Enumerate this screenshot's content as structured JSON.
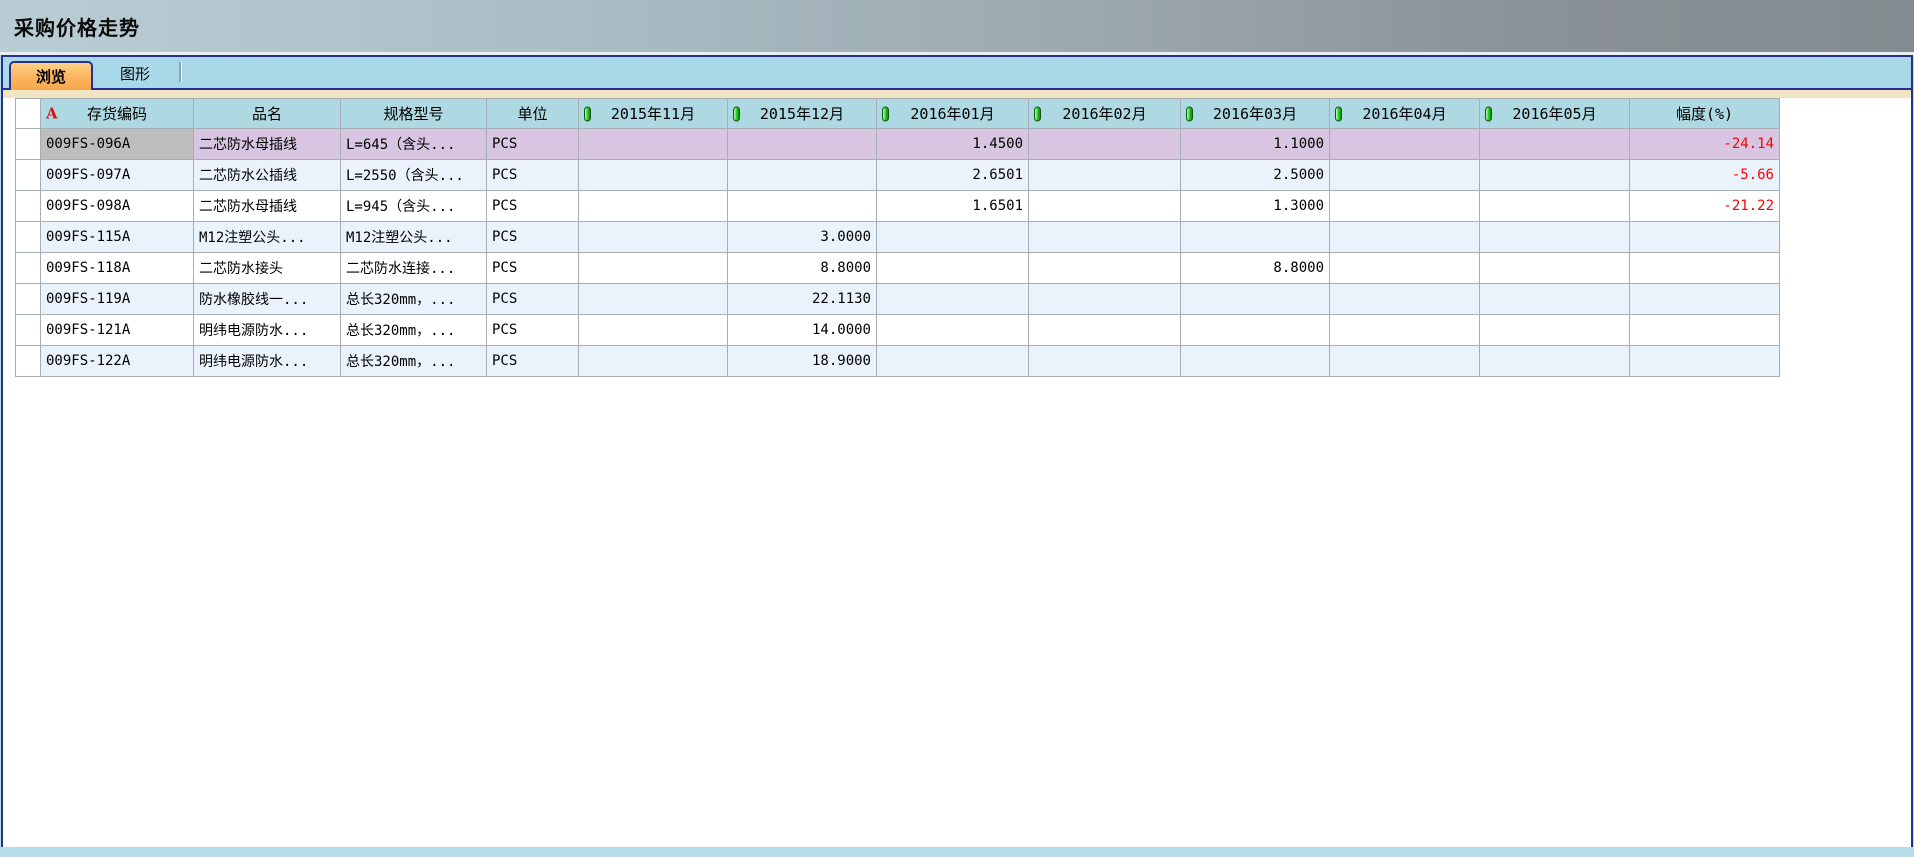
{
  "window": {
    "title": "采购价格走势"
  },
  "tabs": [
    {
      "label": "浏览",
      "active": true
    },
    {
      "label": "图形",
      "active": false
    }
  ],
  "colors": {
    "titlebar_gradient_left": "#b9cdd5",
    "titlebar_gradient_right": "#848b90",
    "frame_border": "#27308e",
    "tabstrip_bg": "#a9d9e8",
    "active_tab_orange": "#fbb863",
    "cream_band": "#f1e5c3",
    "header_bg": "#aed9e3",
    "alt_row_bg": "#eaf3fb",
    "selected_row_bg": "#d7c5e1",
    "selected_cell_bg": "#bfbebe",
    "negative_value": "#ff0000",
    "grid_line": "#a6adb3"
  },
  "table": {
    "columns": [
      {
        "key": "code",
        "label": "存货编码",
        "icon": "text-field-icon",
        "align": "left"
      },
      {
        "key": "name",
        "label": "品名",
        "icon": null,
        "align": "left"
      },
      {
        "key": "spec",
        "label": "规格型号",
        "icon": null,
        "align": "left"
      },
      {
        "key": "unit",
        "label": "单位",
        "icon": null,
        "align": "left"
      },
      {
        "key": "m2015_11",
        "label": "2015年11月",
        "icon": "numeric-field-icon",
        "align": "right"
      },
      {
        "key": "m2015_12",
        "label": "2015年12月",
        "icon": "numeric-field-icon",
        "align": "right"
      },
      {
        "key": "m2016_01",
        "label": "2016年01月",
        "icon": "numeric-field-icon",
        "align": "right"
      },
      {
        "key": "m2016_02",
        "label": "2016年02月",
        "icon": "numeric-field-icon",
        "align": "right"
      },
      {
        "key": "m2016_03",
        "label": "2016年03月",
        "icon": "numeric-field-icon",
        "align": "right"
      },
      {
        "key": "m2016_04",
        "label": "2016年04月",
        "icon": "numeric-field-icon",
        "align": "right"
      },
      {
        "key": "m2016_05",
        "label": "2016年05月",
        "icon": "numeric-field-icon",
        "align": "right"
      },
      {
        "key": "range",
        "label": "幅度(%)",
        "icon": null,
        "align": "right"
      }
    ],
    "rows": [
      {
        "selected": true,
        "cells": {
          "code": "009FS-096A",
          "name": "二芯防水母插线",
          "spec": "L=645（含头...",
          "unit": "PCS",
          "m2015_11": "",
          "m2015_12": "",
          "m2016_01": "1.4500",
          "m2016_02": "",
          "m2016_03": "1.1000",
          "m2016_04": "",
          "m2016_05": "",
          "range": "-24.14"
        }
      },
      {
        "selected": false,
        "cells": {
          "code": "009FS-097A",
          "name": "二芯防水公插线",
          "spec": "L=2550（含头...",
          "unit": "PCS",
          "m2015_11": "",
          "m2015_12": "",
          "m2016_01": "2.6501",
          "m2016_02": "",
          "m2016_03": "2.5000",
          "m2016_04": "",
          "m2016_05": "",
          "range": "-5.66"
        }
      },
      {
        "selected": false,
        "cells": {
          "code": "009FS-098A",
          "name": "二芯防水母插线",
          "spec": "L=945（含头...",
          "unit": "PCS",
          "m2015_11": "",
          "m2015_12": "",
          "m2016_01": "1.6501",
          "m2016_02": "",
          "m2016_03": "1.3000",
          "m2016_04": "",
          "m2016_05": "",
          "range": "-21.22"
        }
      },
      {
        "selected": false,
        "cells": {
          "code": "009FS-115A",
          "name": "M12注塑公头...",
          "spec": "M12注塑公头...",
          "unit": "PCS",
          "m2015_11": "",
          "m2015_12": "3.0000",
          "m2016_01": "",
          "m2016_02": "",
          "m2016_03": "",
          "m2016_04": "",
          "m2016_05": "",
          "range": ""
        }
      },
      {
        "selected": false,
        "cells": {
          "code": "009FS-118A",
          "name": "二芯防水接头",
          "spec": "二芯防水连接...",
          "unit": "PCS",
          "m2015_11": "",
          "m2015_12": "8.8000",
          "m2016_01": "",
          "m2016_02": "",
          "m2016_03": "8.8000",
          "m2016_04": "",
          "m2016_05": "",
          "range": ""
        }
      },
      {
        "selected": false,
        "cells": {
          "code": "009FS-119A",
          "name": "防水橡胶线一...",
          "spec": "总长320mm，...",
          "unit": "PCS",
          "m2015_11": "",
          "m2015_12": "22.1130",
          "m2016_01": "",
          "m2016_02": "",
          "m2016_03": "",
          "m2016_04": "",
          "m2016_05": "",
          "range": ""
        }
      },
      {
        "selected": false,
        "cells": {
          "code": "009FS-121A",
          "name": "明纬电源防水...",
          "spec": "总长320mm，...",
          "unit": "PCS",
          "m2015_11": "",
          "m2015_12": "14.0000",
          "m2016_01": "",
          "m2016_02": "",
          "m2016_03": "",
          "m2016_04": "",
          "m2016_05": "",
          "range": ""
        }
      },
      {
        "selected": false,
        "cells": {
          "code": "009FS-122A",
          "name": "明纬电源防水...",
          "spec": "总长320mm，...",
          "unit": "PCS",
          "m2015_11": "",
          "m2015_12": "18.9000",
          "m2016_01": "",
          "m2016_02": "",
          "m2016_03": "",
          "m2016_04": "",
          "m2016_05": "",
          "range": ""
        }
      }
    ]
  }
}
